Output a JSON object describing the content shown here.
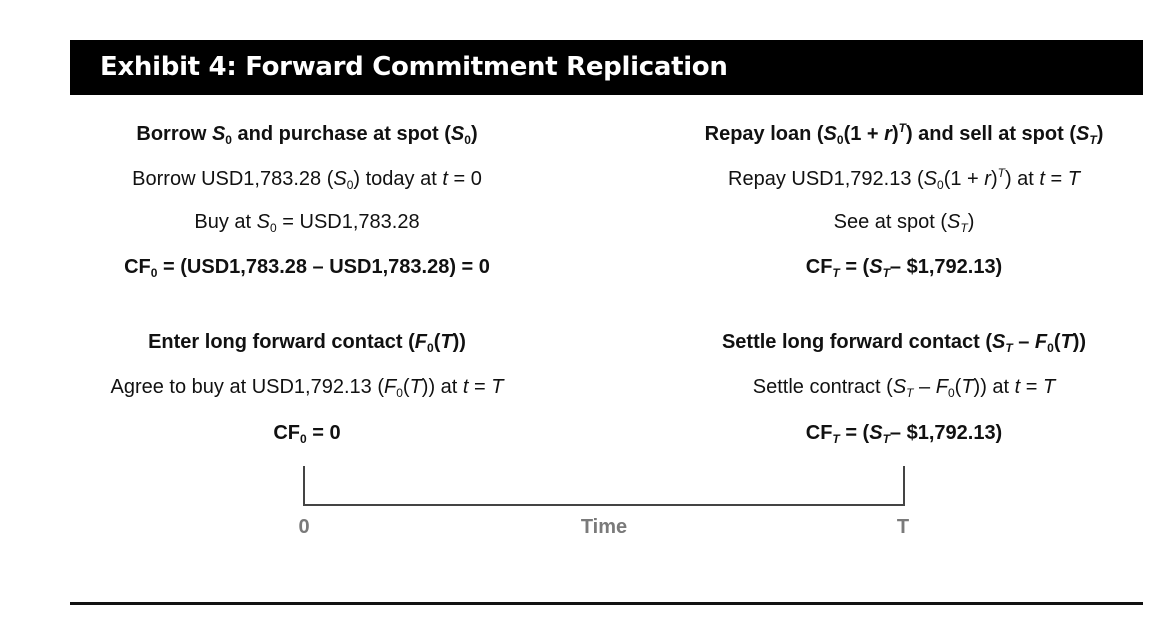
{
  "title": "Exhibit 4: Forward Commitment Replication",
  "left": {
    "block1": {
      "heading": {
        "pre": "Borrow ",
        "v1": "S",
        "s1": "0",
        "mid": " and purchase at spot (",
        "v2": "S",
        "s2": "0",
        "post": ")"
      },
      "line1": {
        "pre": "Borrow USD1,783.28 (",
        "v": "S",
        "s": "0",
        "mid": ") today at ",
        "t": "t",
        "post": " = 0"
      },
      "line2": {
        "pre": "Buy at ",
        "v": "S",
        "s": "0",
        "post": " = USD1,783.28"
      },
      "cf": {
        "label": "CF",
        "sub": "0",
        "expr": " = (USD1,783.28 – USD1,783.28) = 0"
      }
    },
    "block2": {
      "heading": {
        "pre": "Enter long forward contact (",
        "v": "F",
        "s": "0",
        "mid": "(",
        "t": "T",
        "post": "))"
      },
      "line1": {
        "pre": "Agree to buy at USD1,792.13 (",
        "v": "F",
        "s": "0",
        "mid": "(",
        "t1": "T",
        "mid2": ")) at ",
        "t2": "t",
        "eq": " = ",
        "t3": "T"
      },
      "cf": {
        "label": "CF",
        "sub": "0",
        "expr": " = 0"
      }
    }
  },
  "right": {
    "block1": {
      "heading": {
        "pre": "Repay loan (",
        "v1": "S",
        "s1": "0",
        "mid": "(1 + ",
        "r": "r",
        "mid2": ")",
        "sup": "T",
        "mid3": ") and sell at spot (",
        "v2": "S",
        "s2": "T",
        "post": ")"
      },
      "line1": {
        "pre": "Repay USD1,792.13 (",
        "v": "S",
        "s": "0",
        "mid": "(1 + ",
        "r": "r",
        "mid2": ")",
        "sup": "T",
        "mid3": ") at ",
        "t1": "t",
        "eq": " = ",
        "t2": "T"
      },
      "line2": {
        "pre": "See at spot (",
        "v": "S",
        "s": "T",
        "post": ")"
      },
      "cf": {
        "label": "CF",
        "sub": "T",
        "pre": " = (",
        "v": "S",
        "s": "T",
        "expr": "– $1,792.13)"
      }
    },
    "block2": {
      "heading": {
        "pre": "Settle long forward contact (",
        "v1": "S",
        "s1": "T",
        "mid": " – ",
        "v2": "F",
        "s2": "0",
        "mid2": "(",
        "t": "T",
        "post": "))"
      },
      "line1": {
        "pre": "Settle contract (",
        "v1": "S",
        "s1": "T",
        "mid": " – ",
        "v2": "F",
        "s2": "0",
        "mid2": "(",
        "t1": "T",
        "mid3": ")) at ",
        "t2": "t",
        "eq": " = ",
        "t3": "T"
      },
      "cf": {
        "label": "CF",
        "sub": "T",
        "pre": " = (",
        "v": "S",
        "s": "T",
        "expr": "– $1,792.13)"
      }
    }
  },
  "timeline": {
    "start_label": "0",
    "mid_label": "Time",
    "end_label": "T"
  },
  "colors": {
    "banner_bg": "#000000",
    "banner_text": "#ffffff",
    "axis_label": "#7a7a7a",
    "line": "#444444"
  }
}
